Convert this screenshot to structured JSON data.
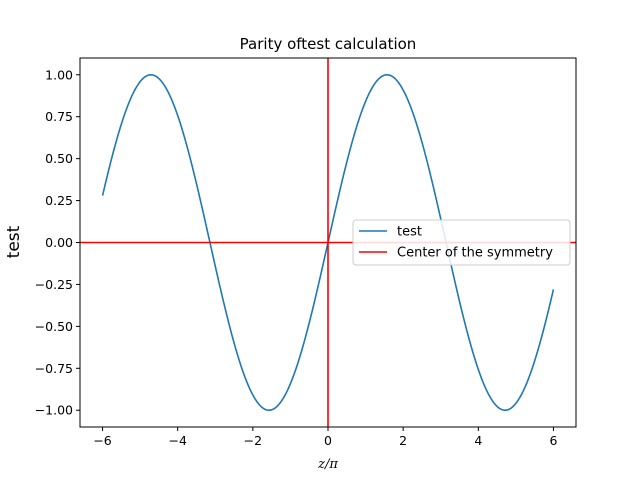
{
  "chart_data": {
    "type": "line",
    "title": "Parity oftest calculation",
    "xlabel": "z/π",
    "ylabel": "test",
    "xlim": [
      -6.6,
      6.6
    ],
    "ylim": [
      -1.1,
      1.1
    ],
    "x_ticks": [
      -6,
      -4,
      -2,
      0,
      2,
      4,
      6
    ],
    "x_tick_labels": [
      "−6",
      "−4",
      "−2",
      "0",
      "2",
      "4",
      "6"
    ],
    "y_ticks": [
      -1.0,
      -0.75,
      -0.5,
      -0.25,
      0.0,
      0.25,
      0.5,
      0.75,
      1.0
    ],
    "y_tick_labels": [
      "−1.00",
      "−0.75",
      "−0.50",
      "−0.25",
      "0.00",
      "0.25",
      "0.50",
      "0.75",
      "1.00"
    ],
    "grid": false,
    "legend_position": "center-right",
    "series": [
      {
        "name": "test",
        "color": "#1f77b4",
        "x_range": [
          -6,
          6
        ],
        "function": "sin(x)",
        "sample_points": [
          {
            "x": -6,
            "y": 0.28
          },
          {
            "x": -4.71,
            "y": 1.0
          },
          {
            "x": -3.14,
            "y": 0.0
          },
          {
            "x": -1.57,
            "y": -1.0
          },
          {
            "x": 0,
            "y": 0.0
          },
          {
            "x": 1.57,
            "y": 1.0
          },
          {
            "x": 3.14,
            "y": 0.0
          },
          {
            "x": 4.71,
            "y": -1.0
          },
          {
            "x": 6,
            "y": -0.28
          }
        ]
      },
      {
        "name": "Center of the symmetry",
        "color": "#ff0000",
        "lines": [
          {
            "orientation": "vertical",
            "x": 0
          },
          {
            "orientation": "horizontal",
            "y": 0
          }
        ]
      }
    ]
  }
}
